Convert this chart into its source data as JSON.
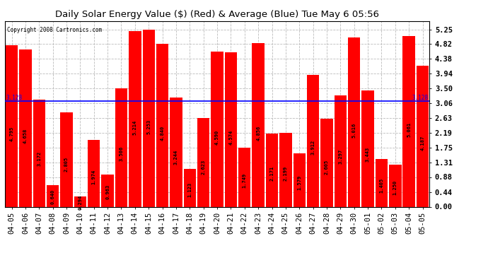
{
  "title": "Daily Solar Energy Value ($) (Red) & Average (Blue) Tue May 6 05:56",
  "copyright": "Copyright 2008 Cartronics.com",
  "average": 3.128,
  "bar_color": "#ff0000",
  "avg_line_color": "#0000ff",
  "background_color": "#ffffff",
  "plot_bg_color": "#ffffff",
  "grid_color": "#bbbbbb",
  "categories": [
    "04-05",
    "04-06",
    "04-07",
    "04-08",
    "04-09",
    "04-10",
    "04-11",
    "04-12",
    "04-13",
    "04-14",
    "04-15",
    "04-16",
    "04-17",
    "04-18",
    "04-19",
    "04-20",
    "04-21",
    "04-22",
    "04-23",
    "04-24",
    "04-25",
    "04-26",
    "04-27",
    "04-28",
    "04-29",
    "04-30",
    "05-01",
    "05-02",
    "05-03",
    "05-04",
    "05-05"
  ],
  "values": [
    4.795,
    4.658,
    3.172,
    0.64,
    2.805,
    0.294,
    1.974,
    0.963,
    3.506,
    5.214,
    5.253,
    4.84,
    3.244,
    1.123,
    2.623,
    4.59,
    4.574,
    1.749,
    4.856,
    2.171,
    2.199,
    1.579,
    3.912,
    2.605,
    3.297,
    5.016,
    3.443,
    1.405,
    1.25,
    5.061,
    4.187
  ],
  "ylim": [
    0,
    5.5
  ],
  "yticks": [
    0.0,
    0.44,
    0.88,
    1.31,
    1.75,
    2.19,
    2.63,
    3.06,
    3.5,
    3.94,
    4.38,
    4.82,
    5.25
  ],
  "title_fontsize": 9.5,
  "label_fontsize": 5.0,
  "tick_fontsize": 7.5,
  "copyright_fontsize": 5.5,
  "avg_label": "3.128"
}
